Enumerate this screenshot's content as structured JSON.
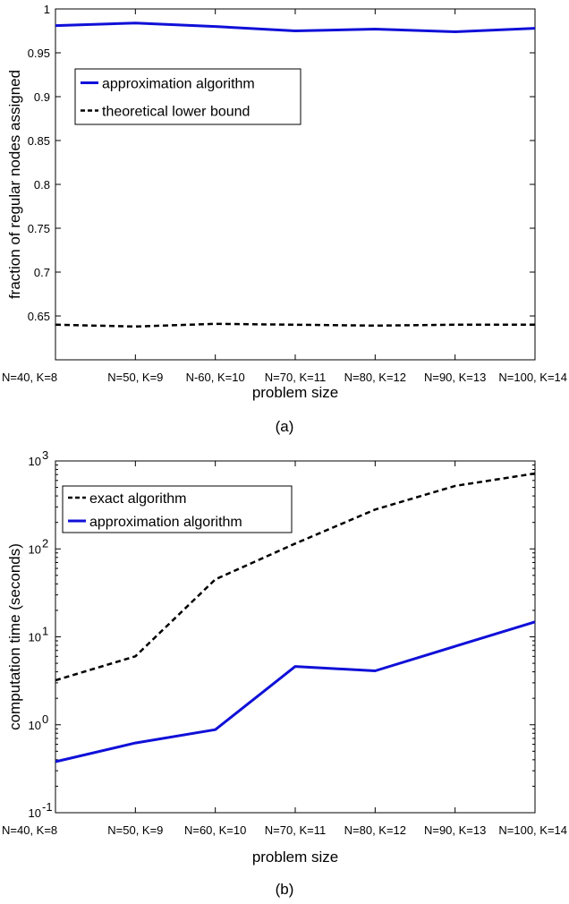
{
  "chart_data": [
    {
      "panel": "a",
      "type": "line",
      "caption": "(a)",
      "xlabel": "problem size",
      "ylabel": "fraction of regular nodes assigned",
      "categories": [
        "N=40, K=8",
        "N=50, K=9",
        "N-60, K=10",
        "N=70, K=11",
        "N=80, K=12",
        "N=90, K=13",
        "N=100, K=14"
      ],
      "ylim": [
        0.6,
        1.0
      ],
      "y_scale": "linear",
      "y_ticks": [
        "0.65",
        "0.7",
        "0.75",
        "0.8",
        "0.85",
        "0.9",
        "0.95",
        "1"
      ],
      "y_tick_values": [
        0.65,
        0.7,
        0.75,
        0.8,
        0.85,
        0.9,
        0.95,
        1.0
      ],
      "grid": false,
      "legend_position": "upper-left",
      "series": [
        {
          "name": "approximation algorithm",
          "color": "#1010d8",
          "style": "solid",
          "values": [
            0.981,
            0.984,
            0.98,
            0.975,
            0.977,
            0.974,
            0.978
          ]
        },
        {
          "name": "theoretical lower bound",
          "color": "#000000",
          "style": "dashed",
          "values": [
            0.64,
            0.638,
            0.641,
            0.64,
            0.639,
            0.64,
            0.64
          ]
        }
      ]
    },
    {
      "panel": "b",
      "type": "line",
      "caption": "(b)",
      "xlabel": "problem size",
      "ylabel": "computation time (seconds)",
      "categories": [
        "N=40, K=8",
        "N=50, K=9",
        "N=60, K=10",
        "N=70, K=11",
        "N=80, K=12",
        "N=90, K=13",
        "N=100, K=14"
      ],
      "ylim": [
        0.1,
        1000
      ],
      "y_scale": "log",
      "y_ticks": [
        {
          "base": "10",
          "exp": "-1",
          "value": 0.1
        },
        {
          "base": "10",
          "exp": "0",
          "value": 1
        },
        {
          "base": "10",
          "exp": "1",
          "value": 10
        },
        {
          "base": "10",
          "exp": "2",
          "value": 100
        },
        {
          "base": "10",
          "exp": "3",
          "value": 1000
        }
      ],
      "grid": false,
      "legend_position": "upper-left",
      "series": [
        {
          "name": "exact algorithm",
          "color": "#000000",
          "style": "dashed",
          "values": [
            3.2,
            6.0,
            45,
            115,
            280,
            520,
            720
          ]
        },
        {
          "name": "approximation algorithm",
          "color": "#1010d8",
          "style": "solid",
          "values": [
            0.38,
            0.62,
            0.88,
            4.6,
            4.1,
            7.8,
            14.8
          ]
        }
      ]
    }
  ]
}
